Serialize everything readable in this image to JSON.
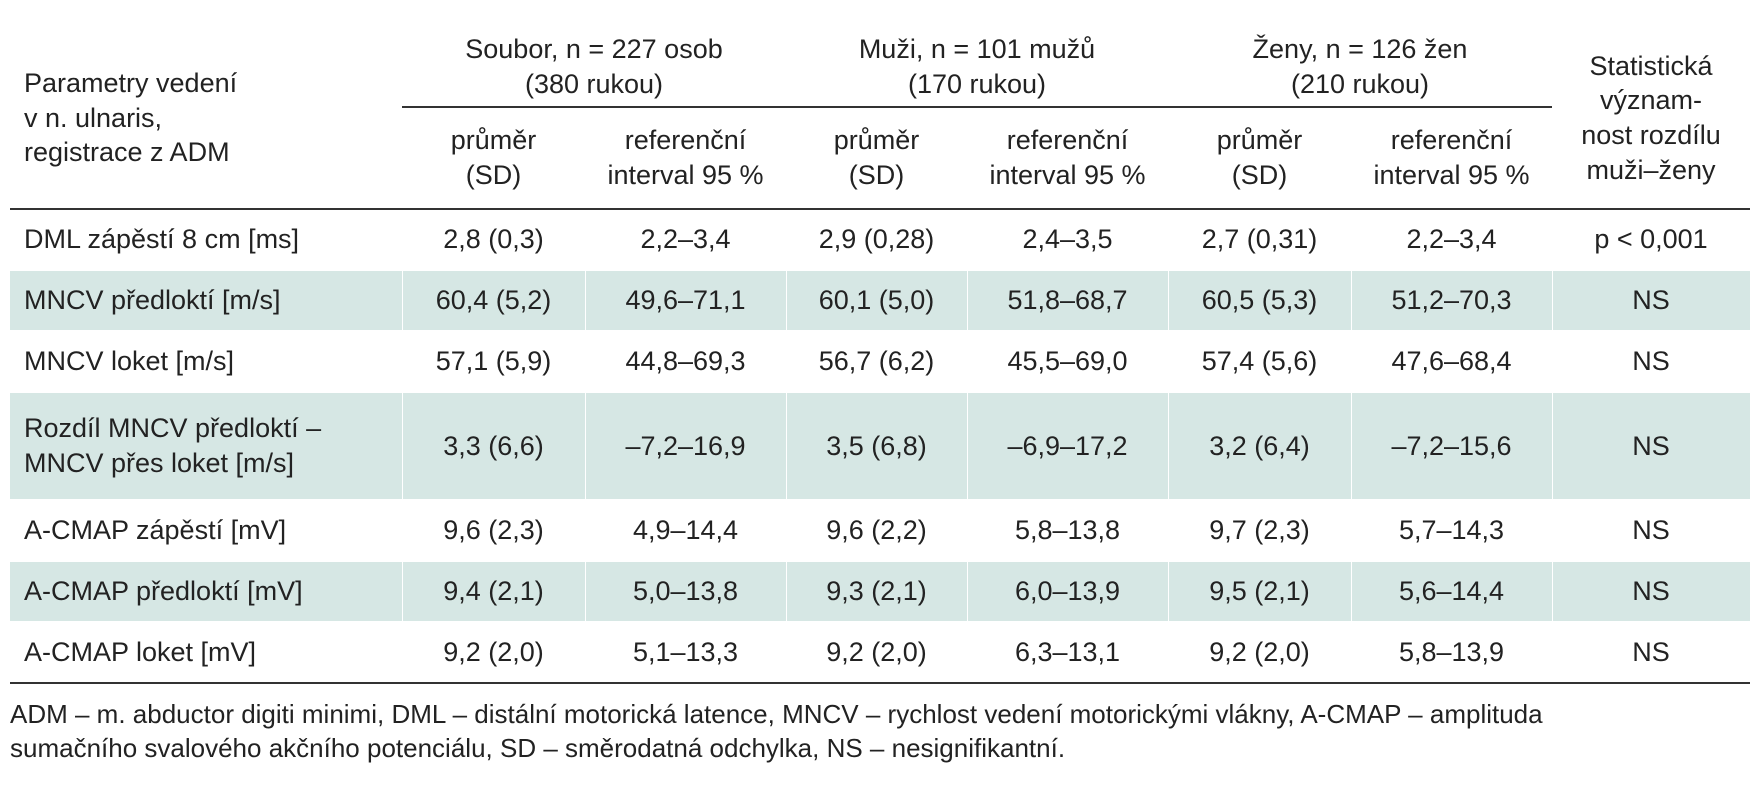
{
  "header": {
    "param_label_lines": [
      "Parametry vedení",
      "v n. ulnaris,",
      "registrace z ADM"
    ],
    "groups": [
      {
        "line1": "Soubor, n = 227 osob",
        "line2": "(380 rukou)"
      },
      {
        "line1": "Muži, n = 101 mužů",
        "line2": "(170 rukou)"
      },
      {
        "line1": "Ženy, n = 126 žen",
        "line2": "(210 rukou)"
      }
    ],
    "stat_lines": [
      "Statistická",
      "význam-",
      "nost rozdílu",
      "muži–ženy"
    ],
    "sub_mean_lines": [
      "průměr",
      "(SD)"
    ],
    "sub_ref_lines": [
      "referenční",
      "interval 95 %"
    ]
  },
  "rows": [
    {
      "param_lines": [
        "DML zápěstí 8 cm [ms]"
      ],
      "values": [
        "2,8 (0,3)",
        "2,2–3,4",
        "2,9 (0,28)",
        "2,4–3,5",
        "2,7 (0,31)",
        "2,2–3,4",
        "p < 0,001"
      ]
    },
    {
      "param_lines": [
        "MNCV předloktí [m/s]"
      ],
      "values": [
        "60,4 (5,2)",
        "49,6–71,1",
        "60,1 (5,0)",
        "51,8–68,7",
        "60,5 (5,3)",
        "51,2–70,3",
        "NS"
      ]
    },
    {
      "param_lines": [
        "MNCV loket [m/s]"
      ],
      "values": [
        "57,1 (5,9)",
        "44,8–69,3",
        "56,7 (6,2)",
        "45,5–69,0",
        "57,4 (5,6)",
        "47,6–68,4",
        "NS"
      ]
    },
    {
      "param_lines": [
        "Rozdíl MNCV předloktí –",
        "MNCV přes loket [m/s]"
      ],
      "values": [
        "3,3 (6,6)",
        "–7,2–16,9",
        "3,5 (6,8)",
        "–6,9–17,2",
        "3,2 (6,4)",
        "–7,2–15,6",
        "NS"
      ]
    },
    {
      "param_lines": [
        "A-CMAP zápěstí [mV]"
      ],
      "values": [
        "9,6 (2,3)",
        "4,9–14,4",
        "9,6 (2,2)",
        "5,8–13,8",
        "9,7 (2,3)",
        "5,7–14,3",
        "NS"
      ]
    },
    {
      "param_lines": [
        "A-CMAP předloktí [mV]"
      ],
      "values": [
        "9,4 (2,1)",
        "5,0–13,8",
        "9,3 (2,1)",
        "6,0–13,9",
        "9,5 (2,1)",
        "5,6–14,4",
        "NS"
      ]
    },
    {
      "param_lines": [
        "A-CMAP loket [mV]"
      ],
      "values": [
        "9,2 (2,0)",
        "5,1–13,3",
        "9,2 (2,0)",
        "6,3–13,1",
        "9,2 (2,0)",
        "5,8–13,9",
        "NS"
      ]
    }
  ],
  "footnote_lines": [
    "ADM – m. abductor digiti minimi, DML – distální motorická latence, MNCV – rychlost vedení motorickými vlákny, A-CMAP – amplituda",
    "sumačního svalového akčního potenciálu, SD – směrodatná odchylka, NS – nesignifikantní."
  ],
  "colors": {
    "row_shade": "#d6e7e4",
    "rule": "#333333",
    "text": "#222222"
  }
}
